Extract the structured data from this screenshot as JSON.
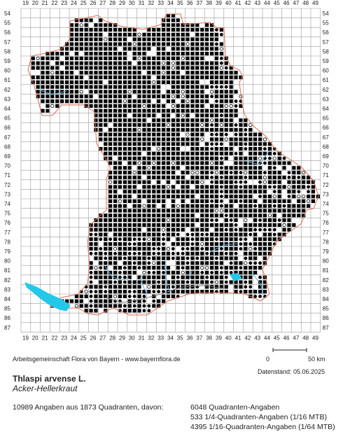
{
  "map": {
    "columns": [
      "19",
      "20",
      "21",
      "22",
      "23",
      "24",
      "25",
      "26",
      "27",
      "28",
      "29",
      "30",
      "31",
      "32",
      "33",
      "34",
      "35",
      "36",
      "37",
      "38",
      "39",
      "40",
      "41",
      "42",
      "43",
      "44",
      "45",
      "46",
      "47",
      "48",
      "49"
    ],
    "rows": [
      "54",
      "55",
      "56",
      "57",
      "58",
      "59",
      "60",
      "61",
      "62",
      "63",
      "64",
      "65",
      "66",
      "67",
      "68",
      "69",
      "70",
      "71",
      "72",
      "73",
      "74",
      "75",
      "76",
      "77",
      "78",
      "79",
      "80",
      "81",
      "82",
      "83",
      "84",
      "85",
      "86",
      "87"
    ],
    "colors": {
      "grid": "#9a9a9a",
      "border": "#e06a50",
      "water": "#23c8e8",
      "rivers": "#5aaee0",
      "marker": "#000000"
    },
    "legend_symbols": [
      "filled-square",
      "filled-circle",
      "filled-small-circle",
      "open-circle"
    ]
  },
  "footer": {
    "credit": "Arbeitsgemeinschaft Flora von Bayern - www.bayernflora.de",
    "scale_zero": "0",
    "scale_km": "50 km",
    "date": "Datenstand: 05.06.2025"
  },
  "species": {
    "name": "Thlaspi arvense L.",
    "german": "Acker-Hellerkraut"
  },
  "stats": {
    "total": "10989 Angaben aus 1873 Quadranten, davon:",
    "line1": "6048 Quadranten-Angaben",
    "line2": "533 1/4-Quadranten-Angaben (1/16 MTB)",
    "line3": "4395 1/16-Quadranten-Angaben (1/64 MTB)"
  }
}
